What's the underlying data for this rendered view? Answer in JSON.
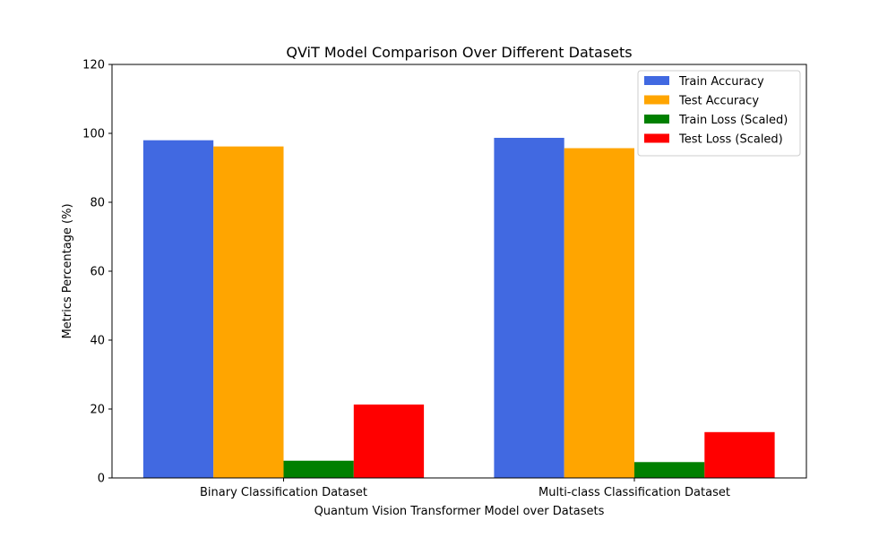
{
  "chart_data": {
    "type": "bar",
    "title": "QViT Model Comparison Over Different Datasets",
    "xlabel": "Quantum Vision Transformer Model over Datasets",
    "ylabel": "Metrics Percentage (%)",
    "ylim": [
      0,
      120
    ],
    "yticks": [
      0,
      20,
      40,
      60,
      80,
      100,
      120
    ],
    "categories": [
      "Binary Classification Dataset",
      "Multi-class Classification Dataset"
    ],
    "series": [
      {
        "name": "Train Accuracy",
        "color": "#4169e1",
        "values": [
          98.0,
          98.7
        ]
      },
      {
        "name": "Test Accuracy",
        "color": "#ffa500",
        "values": [
          96.2,
          95.7
        ]
      },
      {
        "name": "Train Loss (Scaled)",
        "color": "#008000",
        "values": [
          5.0,
          4.6
        ]
      },
      {
        "name": "Test Loss (Scaled)",
        "color": "#ff0000",
        "values": [
          21.3,
          13.3
        ]
      }
    ],
    "legend": "top-right",
    "grid": false
  }
}
